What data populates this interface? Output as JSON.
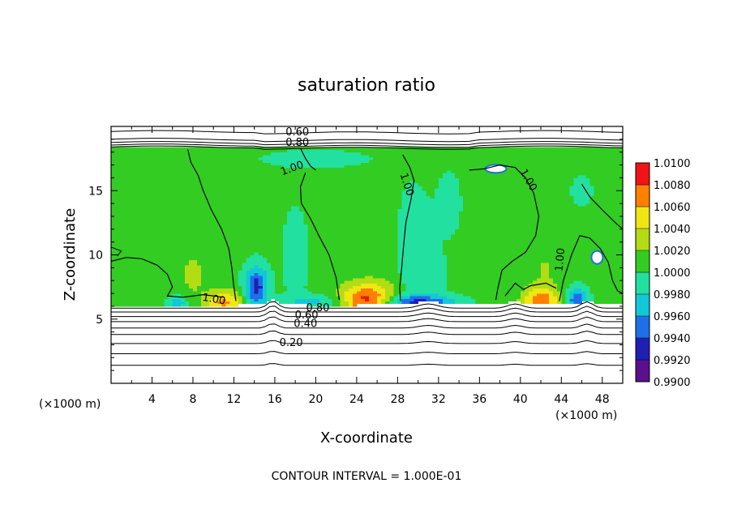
{
  "chart_data": {
    "type": "heatmap",
    "title": "saturation ratio",
    "xlabel": "X-coordinate",
    "ylabel": "Z-coordinate",
    "x_unit": "(×1000 m)",
    "y_unit": "(×1000 m)",
    "xlim": [
      0,
      50
    ],
    "ylim": [
      0,
      20
    ],
    "x_ticks": [
      4,
      8,
      12,
      16,
      20,
      24,
      28,
      32,
      36,
      40,
      44,
      48
    ],
    "y_ticks": [
      5,
      10,
      15
    ],
    "colorbar": {
      "levels": [
        0.99,
        0.992,
        0.994,
        0.996,
        0.998,
        1.0,
        1.002,
        1.004,
        1.006,
        1.008,
        1.01
      ],
      "labels": [
        "0.9900",
        "0.9920",
        "0.9940",
        "0.9960",
        "0.9980",
        "1.0000",
        "1.0020",
        "1.0040",
        "1.0060",
        "1.0080",
        "1.0100"
      ],
      "colors": [
        "#5a0f8c",
        "#1f1fb4",
        "#1e6fe8",
        "#12c8d8",
        "#22e0a0",
        "#33cc22",
        "#b4dc14",
        "#f0e614",
        "#ff7f00",
        "#f01414",
        "#f08c8c"
      ]
    },
    "contour_labels": [
      "0.60",
      "0.80",
      "1.00",
      "1.00",
      "1.00",
      "1.00",
      "1.00",
      "0.80",
      "0.60",
      "0.40",
      "0.20"
    ],
    "footer": "CONTOUR INTERVAL = 1.000E-01"
  }
}
